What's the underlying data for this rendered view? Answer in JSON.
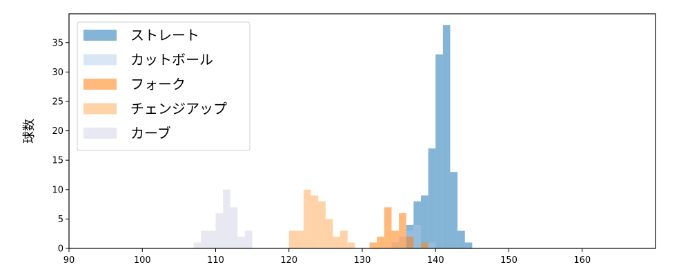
{
  "chart_data": {
    "type": "bar",
    "title": "",
    "xlabel": "",
    "ylabel": "球数",
    "xlim": [
      90,
      170
    ],
    "ylim": [
      0,
      39.9
    ],
    "xticks": [
      90,
      100,
      110,
      120,
      130,
      140,
      150,
      160
    ],
    "yticks": [
      0,
      5,
      10,
      15,
      20,
      25,
      30,
      35
    ],
    "grid": false,
    "legend_position": "top-left",
    "bin_width": 1,
    "series": [
      {
        "name": "ストレート",
        "color": "#1f77b4",
        "opacity": 0.55,
        "bins": [
          {
            "x": 136,
            "count": 4
          },
          {
            "x": 137,
            "count": 8
          },
          {
            "x": 138,
            "count": 9
          },
          {
            "x": 139,
            "count": 17
          },
          {
            "x": 140,
            "count": 33
          },
          {
            "x": 141,
            "count": 38
          },
          {
            "x": 142,
            "count": 13
          },
          {
            "x": 143,
            "count": 3
          },
          {
            "x": 144,
            "count": 1
          }
        ]
      },
      {
        "name": "カットボール",
        "color": "#aec7e8",
        "opacity": 0.45,
        "bins": [
          {
            "x": 134,
            "count": 1
          },
          {
            "x": 135,
            "count": 2
          },
          {
            "x": 136,
            "count": 3
          },
          {
            "x": 137,
            "count": 4
          },
          {
            "x": 138,
            "count": 1
          },
          {
            "x": 139,
            "count": 1
          }
        ]
      },
      {
        "name": "フォーク",
        "color": "#ff7f0e",
        "opacity": 0.55,
        "bins": [
          {
            "x": 131,
            "count": 1
          },
          {
            "x": 132,
            "count": 2
          },
          {
            "x": 133,
            "count": 7
          },
          {
            "x": 134,
            "count": 3
          },
          {
            "x": 135,
            "count": 6
          },
          {
            "x": 136,
            "count": 2
          },
          {
            "x": 138,
            "count": 1
          }
        ]
      },
      {
        "name": "チェンジアップ",
        "color": "#ffbb78",
        "opacity": 0.65,
        "bins": [
          {
            "x": 120,
            "count": 3
          },
          {
            "x": 121,
            "count": 3
          },
          {
            "x": 122,
            "count": 10
          },
          {
            "x": 123,
            "count": 9
          },
          {
            "x": 124,
            "count": 8
          },
          {
            "x": 125,
            "count": 5
          },
          {
            "x": 126,
            "count": 2
          },
          {
            "x": 127,
            "count": 3
          },
          {
            "x": 128,
            "count": 1
          }
        ]
      },
      {
        "name": "カーブ",
        "color": "#d9d9ea",
        "opacity": 0.6,
        "bins": [
          {
            "x": 107,
            "count": 1
          },
          {
            "x": 108,
            "count": 3
          },
          {
            "x": 109,
            "count": 3
          },
          {
            "x": 110,
            "count": 6
          },
          {
            "x": 111,
            "count": 10
          },
          {
            "x": 112,
            "count": 7
          },
          {
            "x": 113,
            "count": 2
          },
          {
            "x": 114,
            "count": 3
          }
        ]
      }
    ]
  }
}
